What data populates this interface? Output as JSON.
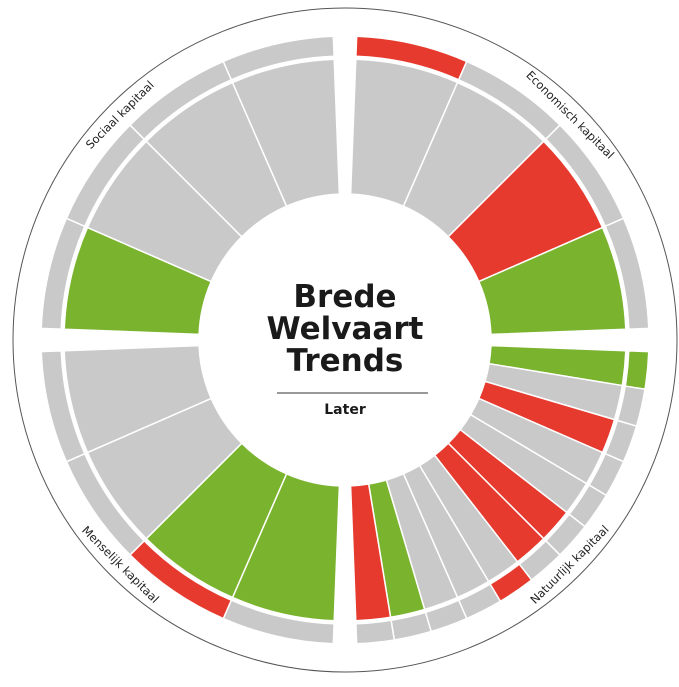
{
  "center": {
    "lines": [
      "Brede",
      "Welvaart",
      "Trends"
    ],
    "sub": "Later"
  },
  "colors": {
    "red": "#e63a2e",
    "green": "#7ab32e",
    "gray": "#c9c9c9"
  },
  "quadrants": [
    {
      "label": "Economisch kapitaal",
      "segments": [
        {
          "inner": "gray",
          "outer": "red"
        },
        {
          "inner": "gray",
          "outer": "gray"
        },
        {
          "inner": "red",
          "outer": "gray"
        },
        {
          "inner": "green",
          "outer": "gray"
        }
      ]
    },
    {
      "label": "Natuurlijk kapitaal",
      "segments": [
        {
          "inner": "green",
          "outer": "green"
        },
        {
          "inner": "gray",
          "outer": "gray"
        },
        {
          "inner": "red",
          "outer": "gray"
        },
        {
          "inner": "gray",
          "outer": "gray"
        },
        {
          "inner": "gray",
          "outer": "gray"
        },
        {
          "inner": "red",
          "outer": "gray"
        },
        {
          "inner": "red",
          "outer": "gray"
        },
        {
          "inner": "gray",
          "outer": "red"
        },
        {
          "inner": "gray",
          "outer": "gray"
        },
        {
          "inner": "gray",
          "outer": "gray"
        },
        {
          "inner": "green",
          "outer": "gray"
        },
        {
          "inner": "red",
          "outer": "gray"
        }
      ]
    },
    {
      "label": "Menselijk kapitaal",
      "segments": [
        {
          "inner": "green",
          "outer": "gray"
        },
        {
          "inner": "green",
          "outer": "red"
        },
        {
          "inner": "gray",
          "outer": "gray"
        },
        {
          "inner": "gray",
          "outer": "gray"
        }
      ]
    },
    {
      "label": "Sociaal kapitaal",
      "segments": [
        {
          "inner": "green",
          "outer": "gray"
        },
        {
          "inner": "gray",
          "outer": "gray"
        },
        {
          "inner": "gray",
          "outer": "gray"
        },
        {
          "inner": "gray",
          "outer": "gray"
        }
      ]
    }
  ]
}
